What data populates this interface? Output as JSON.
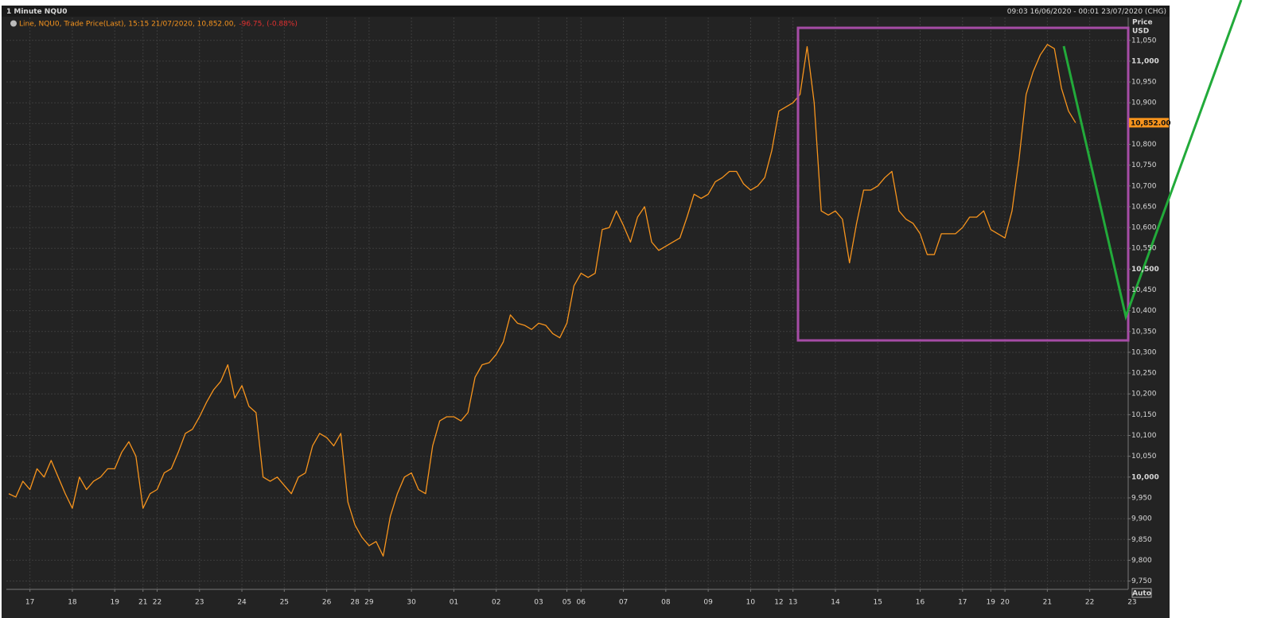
{
  "chart_data": {
    "type": "line",
    "title": "1 Minute NQU0",
    "date_range": "09:03 16/06/2020 - 00:01 23/07/2020 (CHG)",
    "change_label": "-96.75, (-0.88%)",
    "y_label": "Price",
    "y_unit": "USD",
    "auto_button": "Auto",
    "grid": true,
    "last_price": {
      "value": 10852,
      "label": "10,852.00"
    },
    "categories": [
      null,
      null,
      null,
      "17",
      null,
      null,
      null,
      null,
      null,
      "18",
      null,
      null,
      null,
      null,
      null,
      "19",
      null,
      null,
      null,
      "21",
      null,
      "22",
      null,
      null,
      null,
      null,
      null,
      "23",
      null,
      null,
      null,
      null,
      null,
      "24",
      null,
      null,
      null,
      null,
      null,
      "25",
      null,
      null,
      null,
      null,
      null,
      "26",
      null,
      null,
      null,
      "28",
      null,
      "29",
      null,
      null,
      null,
      null,
      null,
      "30",
      null,
      null,
      null,
      null,
      null,
      "01",
      null,
      null,
      null,
      null,
      null,
      "02",
      null,
      null,
      null,
      null,
      null,
      "03",
      null,
      null,
      null,
      "05",
      null,
      "06",
      null,
      null,
      null,
      null,
      null,
      "07",
      null,
      null,
      null,
      null,
      null,
      "08",
      null,
      null,
      null,
      null,
      null,
      "09",
      null,
      null,
      null,
      null,
      null,
      "10",
      null,
      null,
      null,
      "12",
      null,
      "13",
      null,
      null,
      null,
      null,
      null,
      "14",
      null,
      null,
      null,
      null,
      null,
      "15",
      null,
      null,
      null,
      null,
      null,
      "16",
      null,
      null,
      null,
      null,
      null,
      "17",
      null,
      null,
      null,
      "19",
      null,
      "20",
      null,
      null,
      null,
      null,
      null,
      "21",
      null,
      null,
      null,
      null,
      null,
      "22",
      null,
      null,
      null,
      null,
      null,
      "23"
    ],
    "series": [
      {
        "name": "Line, NQU0, Trade Price(Last),  15:15 21/07/2020, 10,852.00,",
        "color": "#f7941d",
        "values": [
          9960,
          9952,
          9990,
          9970,
          10020,
          10000,
          10040,
          10000,
          9960,
          9925,
          10000,
          9970,
          9990,
          10000,
          10020,
          10020,
          10060,
          10085,
          10050,
          9925,
          9960,
          9970,
          10010,
          10020,
          10060,
          10105,
          10115,
          10145,
          10180,
          10210,
          10230,
          10270,
          10190,
          10220,
          10170,
          10155,
          10000,
          9990,
          10000,
          9980,
          9960,
          10000,
          10010,
          10075,
          10105,
          10095,
          10075,
          10105,
          9940,
          9885,
          9855,
          9835,
          9845,
          9810,
          9905,
          9960,
          10000,
          10010,
          9970,
          9960,
          10075,
          10135,
          10145,
          10145,
          10135,
          10155,
          10240,
          10270,
          10275,
          10295,
          10325,
          10390,
          10370,
          10365,
          10355,
          10370,
          10365,
          10345,
          10335,
          10370,
          10460,
          10490,
          10480,
          10490,
          10595,
          10600,
          10640,
          10605,
          10565,
          10625,
          10650,
          10565,
          10545,
          10555,
          10565,
          10575,
          10625,
          10680,
          10670,
          10680,
          10710,
          10720,
          10735,
          10735,
          10705,
          10690,
          10700,
          10720,
          10785,
          10880,
          10890,
          10900,
          10920,
          11035,
          10900,
          10640,
          10630,
          10640,
          10620,
          10515,
          10610,
          10690,
          10690,
          10700,
          10720,
          10735,
          10640,
          10620,
          10610,
          10585,
          10535,
          10535,
          10585,
          10585,
          10585,
          10600,
          10625,
          10625,
          10640,
          10595,
          10585,
          10575,
          10640,
          10765,
          10920,
          10975,
          11015,
          11040,
          11030,
          10935,
          10880,
          10852,
          null,
          null,
          null,
          null,
          null,
          null,
          null,
          null
        ]
      }
    ],
    "ylim": [
      9730,
      11105
    ],
    "yticks": [
      {
        "value": 9750,
        "label": "9,750"
      },
      {
        "value": 9800,
        "label": "9,800"
      },
      {
        "value": 9850,
        "label": "9,850"
      },
      {
        "value": 9900,
        "label": "9,900"
      },
      {
        "value": 9950,
        "label": "9,950"
      },
      {
        "value": 10000,
        "label": "10,000"
      },
      {
        "value": 10050,
        "label": "10,050"
      },
      {
        "value": 10100,
        "label": "10,100"
      },
      {
        "value": 10150,
        "label": "10,150"
      },
      {
        "value": 10200,
        "label": "10,200"
      },
      {
        "value": 10250,
        "label": "10,250"
      },
      {
        "value": 10300,
        "label": "10,300"
      },
      {
        "value": 10350,
        "label": "10,350"
      },
      {
        "value": 10400,
        "label": "10,400"
      },
      {
        "value": 10450,
        "label": "10,450"
      },
      {
        "value": 10500,
        "label": "10,500"
      },
      {
        "value": 10550,
        "label": "10,550"
      },
      {
        "value": 10600,
        "label": "10,600"
      },
      {
        "value": 10650,
        "label": "10,650"
      },
      {
        "value": 10700,
        "label": "10,700"
      },
      {
        "value": 10750,
        "label": "10,750"
      },
      {
        "value": 10800,
        "label": "10,800"
      },
      {
        "value": 10850,
        "label": "10,850"
      },
      {
        "value": 10900,
        "label": "10,900"
      },
      {
        "value": 10950,
        "label": "10,950"
      },
      {
        "value": 11000,
        "label": "11,000"
      },
      {
        "value": 11050,
        "label": "11,050"
      }
    ]
  }
}
